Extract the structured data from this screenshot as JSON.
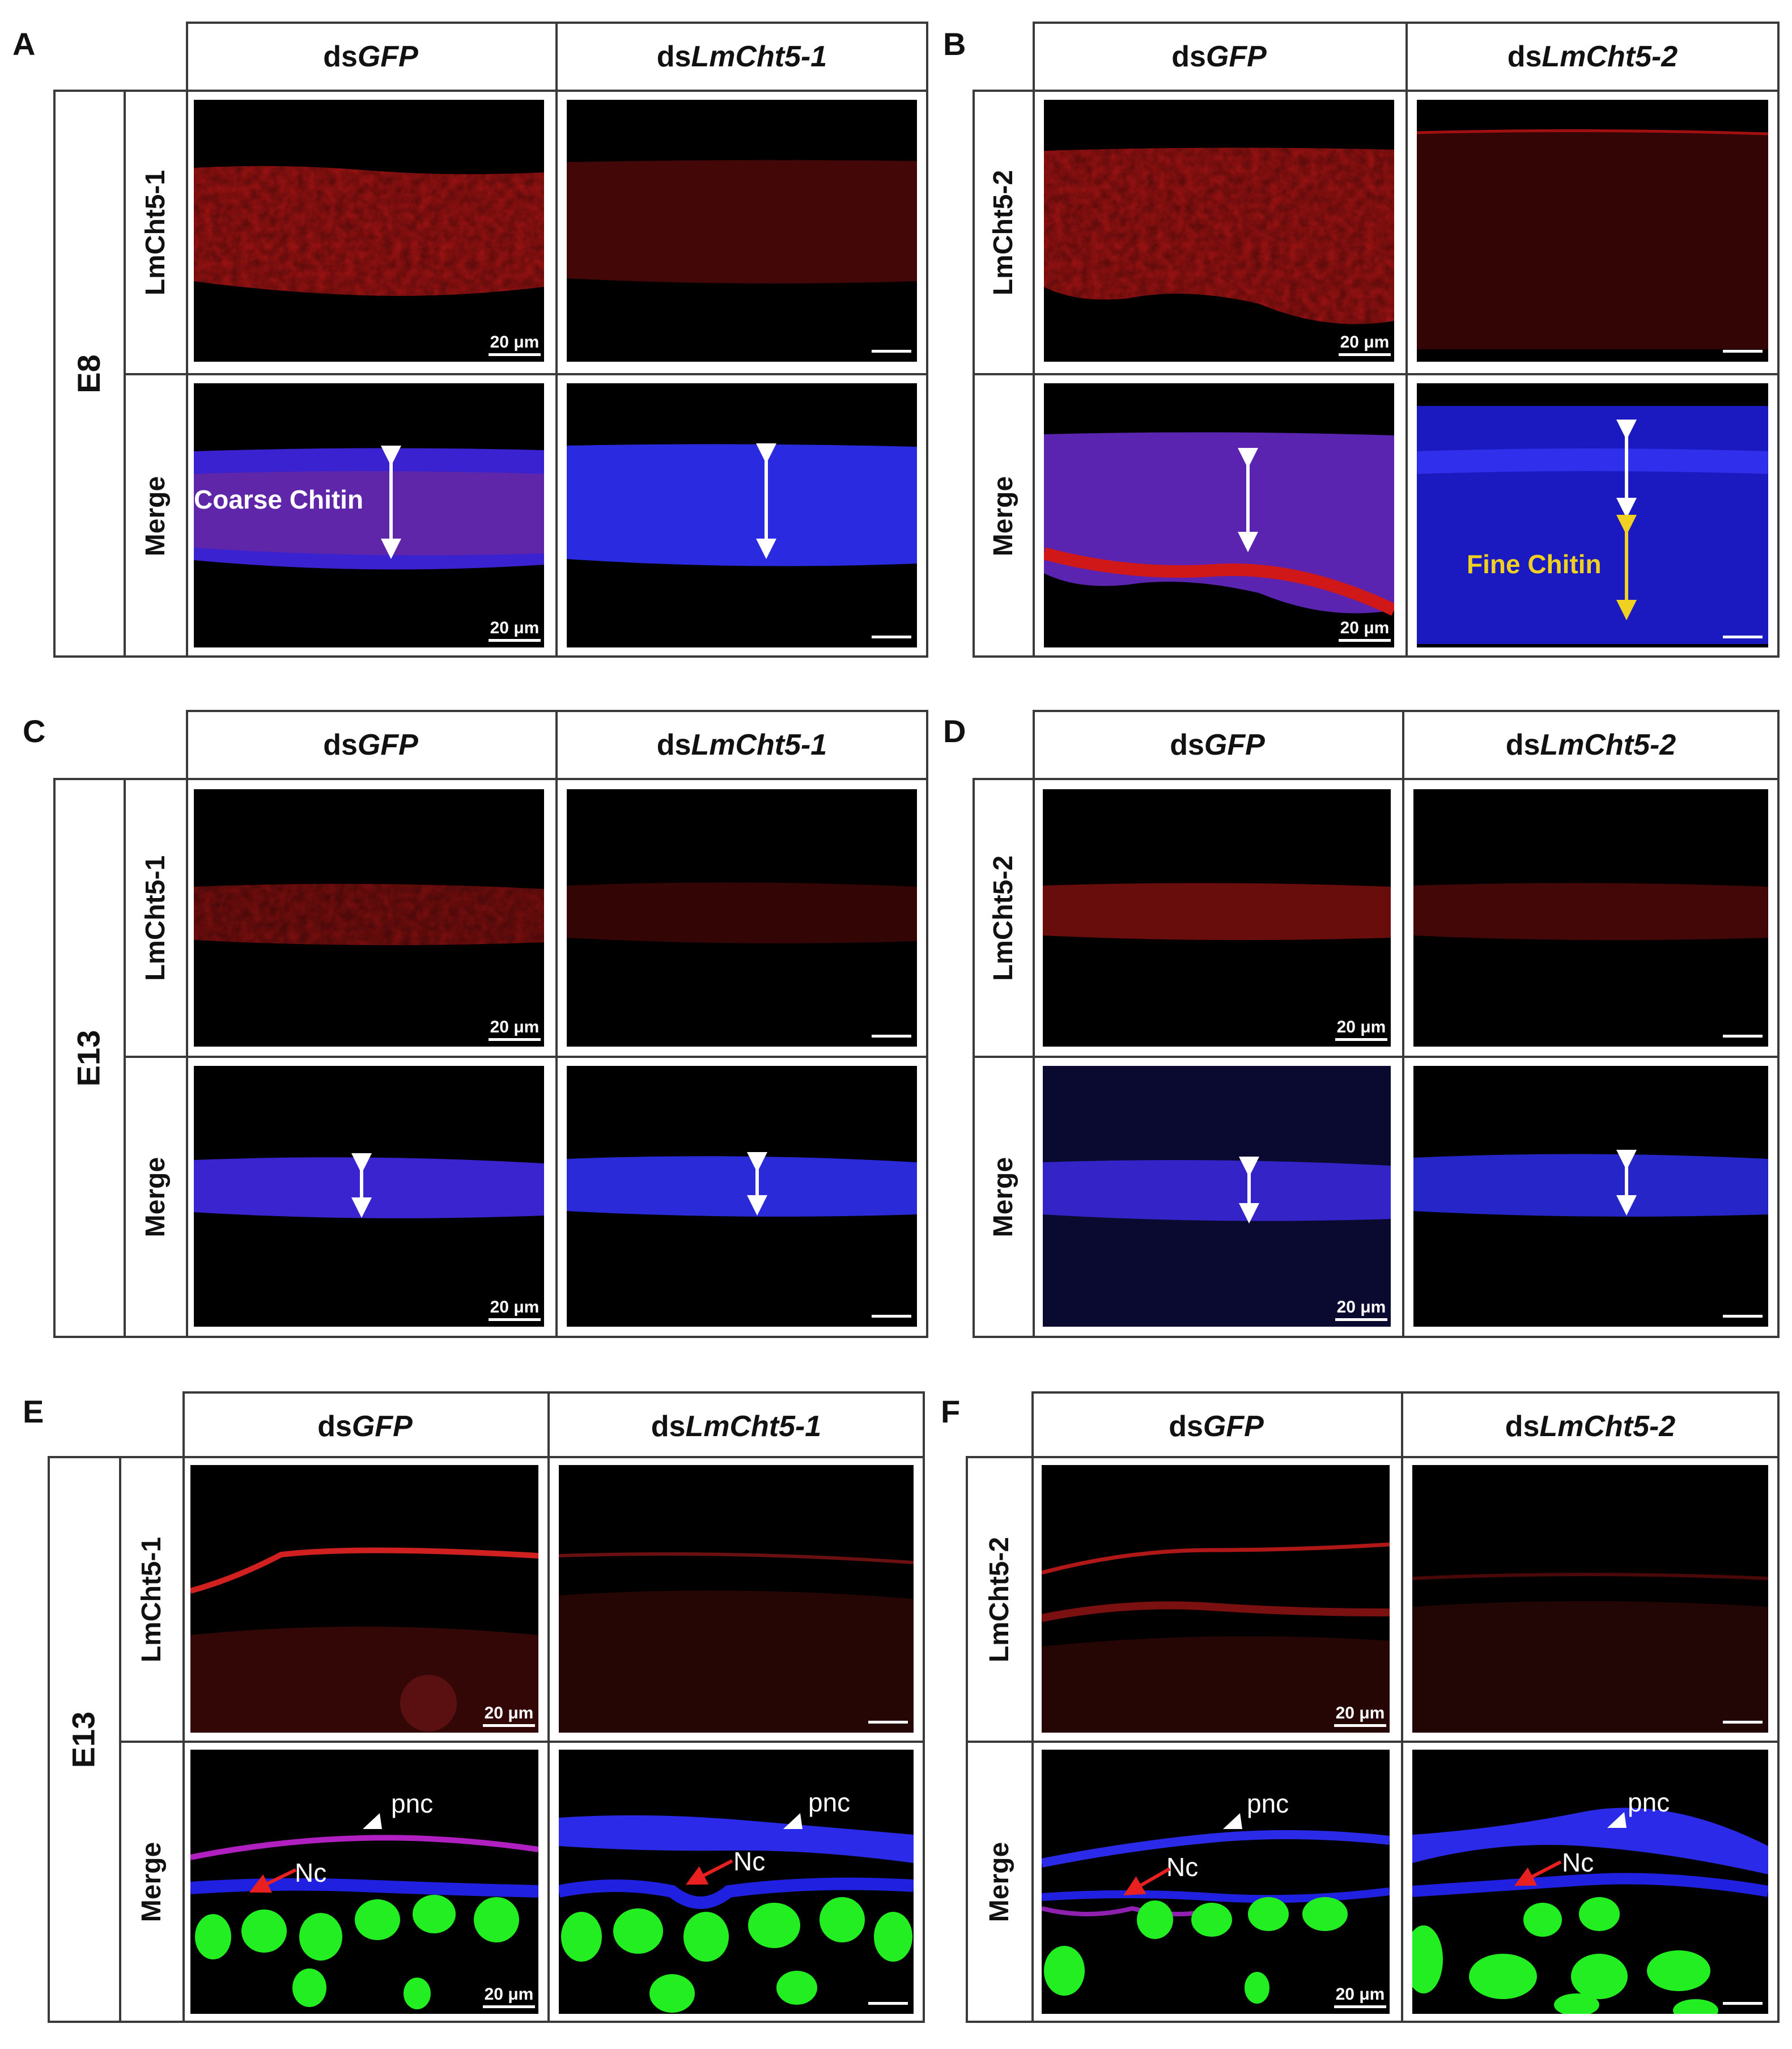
{
  "panels": {
    "A": {
      "letter": "A",
      "col1": {
        "prefix": "ds",
        "italic": "GFP"
      },
      "col2": {
        "prefix": "ds",
        "italic": "LmCht5-1"
      },
      "stage": "E8",
      "row1": "LmCht5-1",
      "row2": "Merge",
      "scale": "20 μm",
      "annotation": "Coarse Chitin"
    },
    "B": {
      "letter": "B",
      "col1": {
        "prefix": "ds",
        "italic": "GFP"
      },
      "col2": {
        "prefix": "ds",
        "italic": "LmCht5-2"
      },
      "row1": "LmCht5-2",
      "row2": "Merge",
      "scale": "20 μm",
      "annotation": "Fine Chitin"
    },
    "C": {
      "letter": "C",
      "col1": {
        "prefix": "ds",
        "italic": "GFP"
      },
      "col2": {
        "prefix": "ds",
        "italic": "LmCht5-1"
      },
      "stage": "E13",
      "row1": "LmCht5-1",
      "row2": "Merge",
      "scale": "20 μm"
    },
    "D": {
      "letter": "D",
      "col1": {
        "prefix": "ds",
        "italic": "GFP"
      },
      "col2": {
        "prefix": "ds",
        "italic": "LmCht5-2"
      },
      "row1": "LmCht5-2",
      "row2": "Merge",
      "scale": "20 μm"
    },
    "E": {
      "letter": "E",
      "col1": {
        "prefix": "ds",
        "italic": "GFP"
      },
      "col2": {
        "prefix": "ds",
        "italic": "LmCht5-1"
      },
      "stage": "E13",
      "row1": "LmCht5-1",
      "row2": "Merge",
      "scale": "20 μm",
      "pnc": "pnc",
      "nc": "Nc"
    },
    "F": {
      "letter": "F",
      "col1": {
        "prefix": "ds",
        "italic": "GFP"
      },
      "col2": {
        "prefix": "ds",
        "italic": "LmCht5-2"
      },
      "row1": "LmCht5-2",
      "row2": "Merge",
      "scale": "20 μm",
      "pnc": "pnc",
      "nc": "Nc"
    }
  },
  "colors": {
    "red_stain": "#c41a1a",
    "blue_stain": "#2a2aff",
    "green_stain": "#22ee22",
    "yellow_arrow": "#f0d020",
    "red_arrow": "#e82020"
  }
}
